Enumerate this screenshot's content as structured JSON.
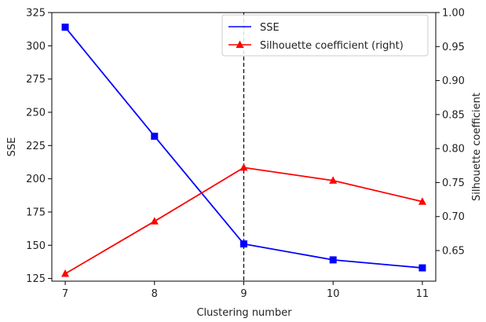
{
  "chart_data": {
    "type": "line",
    "x": [
      7,
      8,
      9,
      10,
      11
    ],
    "xlabel": "Clustering number",
    "xticks": [
      "7",
      "8",
      "9",
      "10",
      "11"
    ],
    "xlim": [
      6.85,
      11.15
    ],
    "series": [
      {
        "name": "SSE",
        "axis": "left",
        "values": [
          314,
          232,
          151,
          139,
          133
        ],
        "color": "#0000ff",
        "marker": "square"
      },
      {
        "name": "Silhouette coefficient (right)",
        "axis": "right",
        "values": [
          0.616,
          0.693,
          0.772,
          0.753,
          0.722
        ],
        "color": "#ff0000",
        "marker": "triangle"
      }
    ],
    "left_axis": {
      "label": "SSE",
      "lim": [
        123,
        325
      ],
      "ticks": [
        "125",
        "150",
        "175",
        "200",
        "225",
        "250",
        "275",
        "300",
        "325"
      ]
    },
    "right_axis": {
      "label": "Silhouette coefficient",
      "lim": [
        0.605,
        1.0
      ],
      "ticks": [
        "0.65",
        "0.70",
        "0.75",
        "0.80",
        "0.85",
        "0.90",
        "0.95",
        "1.00"
      ]
    },
    "vline_x": 9,
    "legend": "upper-right",
    "grid": false
  }
}
